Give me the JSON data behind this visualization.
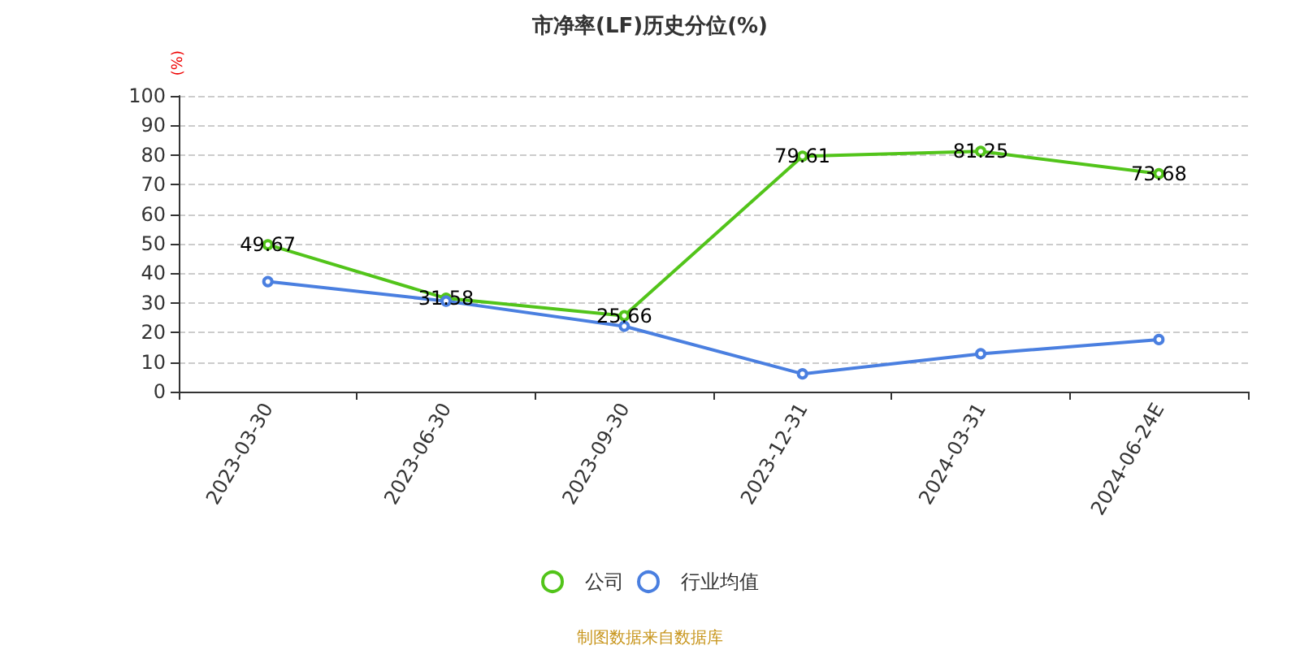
{
  "chart_data": {
    "type": "line",
    "title": "市净率(LF)历史分位(%)",
    "ylabel": "(%)",
    "categories": [
      "2023-03-30",
      "2023-06-30",
      "2023-09-30",
      "2023-12-31",
      "2024-03-31",
      "2024-06-24E"
    ],
    "series": [
      {
        "name": "公司",
        "color": "#52c41a",
        "values": [
          49.67,
          31.58,
          25.66,
          79.61,
          81.25,
          73.68
        ],
        "value_labels": [
          "49.67",
          "31.58",
          "25.66",
          "79.61",
          "81.25",
          "73.68"
        ]
      },
      {
        "name": "行业均值",
        "color": "#4a7fe0",
        "values": [
          37.2,
          30.6,
          22.1,
          6.0,
          12.8,
          17.6
        ]
      }
    ],
    "ylim": [
      0,
      100
    ],
    "yticks": [
      0,
      10,
      20,
      30,
      40,
      50,
      60,
      70,
      80,
      90,
      100
    ],
    "grid": "y",
    "legend": "bottom",
    "marker": "circle",
    "line_style": "solid",
    "annotations": [
      "制图数据来自数据库"
    ]
  }
}
